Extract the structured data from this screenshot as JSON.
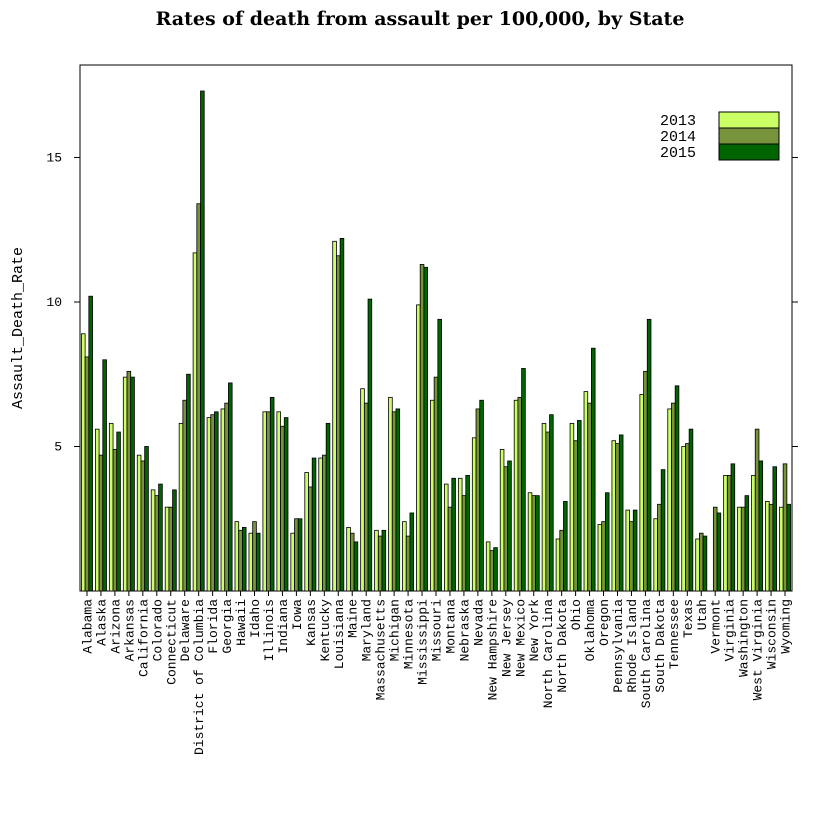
{
  "chart_data": {
    "type": "bar",
    "title": "Rates of death from assault per 100,000, by State",
    "xlabel": "",
    "ylabel": "Assault_Death_Rate",
    "ylim": [
      0,
      18.2
    ],
    "yticks": [
      5,
      10,
      15
    ],
    "grid": false,
    "legend_position": "top-right",
    "categories": [
      "Alabama",
      "Alaska",
      "Arizona",
      "Arkansas",
      "California",
      "Colorado",
      "Connecticut",
      "Delaware",
      "District of Columbia",
      "Florida",
      "Georgia",
      "Hawaii",
      "Idaho",
      "Illinois",
      "Indiana",
      "Iowa",
      "Kansas",
      "Kentucky",
      "Louisiana",
      "Maine",
      "Maryland",
      "Massachusetts",
      "Michigan",
      "Minnesota",
      "Mississippi",
      "Missouri",
      "Montana",
      "Nebraska",
      "Nevada",
      "New Hampshire",
      "New Jersey",
      "New Mexico",
      "New York",
      "North Carolina",
      "North Dakota",
      "Ohio",
      "Oklahoma",
      "Oregon",
      "Pennsylvania",
      "Rhode Island",
      "South Carolina",
      "South Dakota",
      "Tennessee",
      "Texas",
      "Utah",
      "Vermont",
      "Virginia",
      "Washington",
      "West Virginia",
      "Wisconsin",
      "Wyoming"
    ],
    "series": [
      {
        "name": "2013",
        "color": "#ccff66",
        "values": [
          8.9,
          5.6,
          5.8,
          7.4,
          4.7,
          3.5,
          2.9,
          5.8,
          11.7,
          6.0,
          6.3,
          2.4,
          2.0,
          6.2,
          6.2,
          2.0,
          4.1,
          4.6,
          12.1,
          2.2,
          7.0,
          2.1,
          6.7,
          2.4,
          9.9,
          6.6,
          3.7,
          3.9,
          5.3,
          1.7,
          4.9,
          6.6,
          3.4,
          5.8,
          1.8,
          5.8,
          6.9,
          2.3,
          5.2,
          2.8,
          6.8,
          2.5,
          6.3,
          5.0,
          1.8,
          0,
          4.0,
          2.9,
          4.0,
          3.1,
          2.9
        ]
      },
      {
        "name": "2014",
        "color": "#77933c",
        "values": [
          8.1,
          4.7,
          4.9,
          7.6,
          4.5,
          3.3,
          2.9,
          6.6,
          13.4,
          6.1,
          6.5,
          2.1,
          2.4,
          6.2,
          5.7,
          2.5,
          3.6,
          4.7,
          11.6,
          2.0,
          6.5,
          1.9,
          6.2,
          1.9,
          11.3,
          7.4,
          2.9,
          3.3,
          6.3,
          1.4,
          4.3,
          6.7,
          3.3,
          5.5,
          2.1,
          5.2,
          6.5,
          2.4,
          5.1,
          2.4,
          7.6,
          3.0,
          6.5,
          5.1,
          2.0,
          2.9,
          4.0,
          2.9,
          5.6,
          3.0,
          4.4
        ]
      },
      {
        "name": "2015",
        "color": "#006400",
        "values": [
          10.2,
          8.0,
          5.5,
          7.4,
          5.0,
          3.7,
          3.5,
          7.5,
          17.3,
          6.2,
          7.2,
          2.2,
          2.0,
          6.7,
          6.0,
          2.5,
          4.6,
          5.8,
          12.2,
          1.7,
          10.1,
          2.1,
          6.3,
          2.7,
          11.2,
          9.4,
          3.9,
          4.0,
          6.6,
          1.5,
          4.5,
          7.7,
          3.3,
          6.1,
          3.1,
          5.9,
          8.4,
          3.4,
          5.4,
          2.8,
          9.4,
          4.2,
          7.1,
          5.6,
          1.9,
          2.7,
          4.4,
          3.3,
          4.5,
          4.3,
          3.0
        ]
      }
    ]
  }
}
